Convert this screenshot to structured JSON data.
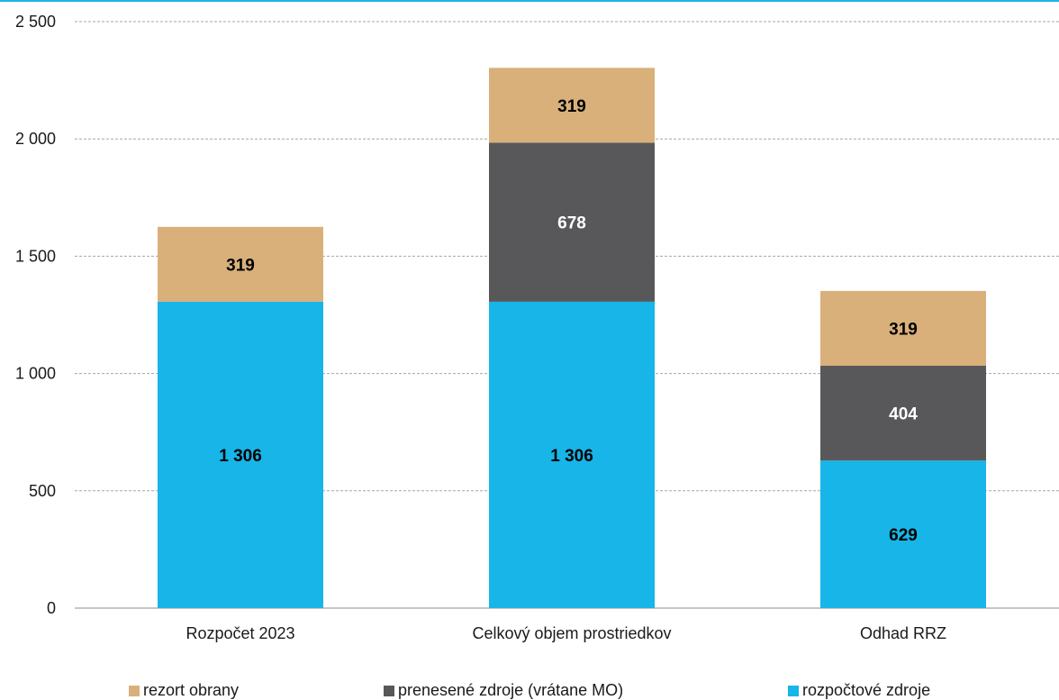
{
  "chart_data": {
    "type": "bar",
    "stacked": true,
    "categories": [
      "Rozpočet 2023",
      "Celkový objem prostriedkov",
      "Odhad RRZ"
    ],
    "series": [
      {
        "name": "rozpočtové zdroje",
        "values": [
          1306,
          1306,
          629
        ],
        "labels": [
          "1 306",
          "1 306",
          "629"
        ],
        "color": "#17b5e8",
        "label_color": "#000000"
      },
      {
        "name": "prenesené zdroje (vrátane MO)",
        "values": [
          0,
          678,
          404
        ],
        "labels": [
          "",
          "678",
          "404"
        ],
        "color": "#58585a",
        "label_color": "#ffffff"
      },
      {
        "name": "rezort obrany",
        "values": [
          319,
          319,
          319
        ],
        "labels": [
          "319",
          "319",
          "319"
        ],
        "color": "#d9b07a",
        "label_color": "#000000"
      }
    ],
    "ylim": [
      0,
      2500
    ],
    "yticks": [
      0,
      500,
      1000,
      1500,
      2000,
      2500
    ],
    "ytick_labels": [
      "0",
      "500",
      "1 000",
      "1 500",
      "2 000",
      "2 500"
    ],
    "grid": true,
    "legend_position": "bottom",
    "legend": [
      {
        "name": "rezort obrany",
        "color": "#d9b07a"
      },
      {
        "name": "prenesené zdroje (vrátane MO)",
        "color": "#58585a"
      },
      {
        "name": "rozpočtové zdroje",
        "color": "#17b5e8"
      }
    ],
    "title": "",
    "xlabel": "",
    "ylabel": ""
  }
}
